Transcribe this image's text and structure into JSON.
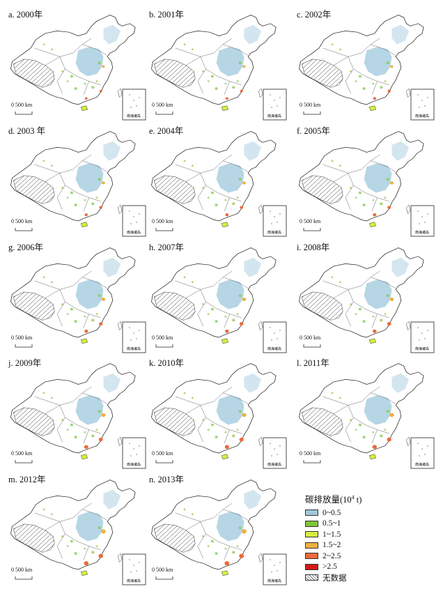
{
  "panels": [
    {
      "title": "a. 2000年"
    },
    {
      "title": "b. 2001年"
    },
    {
      "title": "c. 2002年"
    },
    {
      "title": "d. 2003 年"
    },
    {
      "title": "e. 2004年"
    },
    {
      "title": "f. 2005年"
    },
    {
      "title": "g. 2006年"
    },
    {
      "title": "h. 2007年"
    },
    {
      "title": "i. 2008年"
    },
    {
      "title": "j. 2009年"
    },
    {
      "title": "k. 2010年"
    },
    {
      "title": "l. 2011年"
    },
    {
      "title": "m. 2012年"
    },
    {
      "title": "n. 2013年"
    }
  ],
  "scale_bar": {
    "zero": "0",
    "label": "500 km"
  },
  "inset_label": "南海诸岛",
  "legend": {
    "title_prefix": "碳排放量(10",
    "title_sup": "4",
    "title_suffix": " t)",
    "items": [
      {
        "label": "0~0.5",
        "color": "#9ec8dc"
      },
      {
        "label": "0.5~1",
        "color": "#7fc63a"
      },
      {
        "label": "1~1.5",
        "color": "#d6ee3e"
      },
      {
        "label": "1.5~2",
        "color": "#f0b040"
      },
      {
        "label": "2~2.5",
        "color": "#ec6a3a"
      },
      {
        "label": ">2.5",
        "color": "#d81818"
      },
      {
        "label": "无数据",
        "color": "hatch"
      }
    ]
  }
}
